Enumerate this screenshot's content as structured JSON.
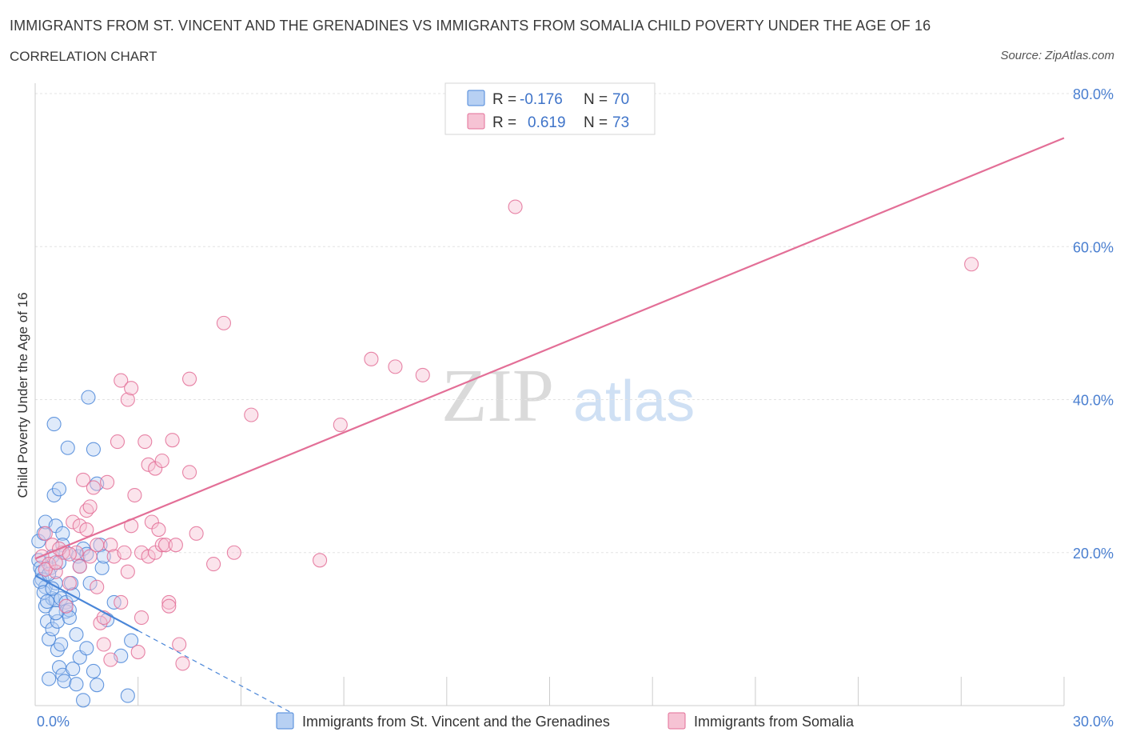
{
  "title": "IMMIGRANTS FROM ST. VINCENT AND THE GRENADINES VS IMMIGRANTS FROM SOMALIA CHILD POVERTY UNDER THE AGE OF 16",
  "subtitle": "CORRELATION CHART",
  "source": "Source: ZipAtlas.com",
  "watermark": {
    "zip": "ZIP",
    "atlas": "atlas"
  },
  "colors": {
    "blue": "#4a86d8",
    "blue_fill": "#b7d0f3",
    "pink": "#e36f97",
    "pink_fill": "#f6c3d4",
    "tick": "#4a7fd0"
  },
  "legend": {
    "rows": [
      {
        "r_label": "R =",
        "r_value": "-0.176",
        "n_label": "N =",
        "n_value": "70"
      },
      {
        "r_label": "R =",
        "r_value": "0.619",
        "n_label": "N =",
        "n_value": "73"
      }
    ]
  },
  "bottom_legend": [
    "Immigrants from St. Vincent and the Grenadines",
    "Immigrants from Somalia"
  ],
  "chart_data": {
    "type": "scatter",
    "title": "IMMIGRANTS FROM ST. VINCENT AND THE GRENADINES VS IMMIGRANTS FROM SOMALIA CHILD POVERTY UNDER THE AGE OF 16",
    "xlabel": "",
    "ylabel": "Child Poverty Under the Age of 16",
    "xlim": [
      0,
      30
    ],
    "ylim": [
      0,
      80
    ],
    "x_tick_labels": [
      "0.0%",
      "30.0%"
    ],
    "y_ticks": [
      20,
      40,
      60,
      80
    ],
    "y_tick_labels": [
      "20.0%",
      "40.0%",
      "60.0%",
      "80.0%"
    ],
    "grid": true,
    "series": [
      {
        "name": "Immigrants from St. Vincent and the Grenadines",
        "color": "#4a86d8",
        "trend": {
          "x0": 0,
          "y0": 17,
          "x1": 3,
          "y1": 9.8,
          "dash_to_x": 7.5
        },
        "points": [
          [
            0.1,
            21.5
          ],
          [
            0.1,
            19
          ],
          [
            0.15,
            18
          ],
          [
            0.2,
            17.5
          ],
          [
            0.2,
            16.5
          ],
          [
            0.25,
            22.5
          ],
          [
            0.3,
            24
          ],
          [
            0.3,
            15.5
          ],
          [
            0.3,
            13
          ],
          [
            0.35,
            11
          ],
          [
            0.4,
            8.7
          ],
          [
            0.4,
            3.5
          ],
          [
            0.45,
            18
          ],
          [
            0.5,
            19.5
          ],
          [
            0.5,
            14
          ],
          [
            0.5,
            10
          ],
          [
            0.55,
            36.8
          ],
          [
            0.55,
            27.5
          ],
          [
            0.6,
            23.5
          ],
          [
            0.6,
            16
          ],
          [
            0.6,
            13.8
          ],
          [
            0.65,
            11
          ],
          [
            0.65,
            7.3
          ],
          [
            0.7,
            28.3
          ],
          [
            0.7,
            5
          ],
          [
            0.75,
            14
          ],
          [
            0.75,
            8
          ],
          [
            0.8,
            22.5
          ],
          [
            0.8,
            21
          ],
          [
            0.8,
            4
          ],
          [
            0.85,
            3.2
          ],
          [
            0.9,
            20
          ],
          [
            0.9,
            13.5
          ],
          [
            0.9,
            12.3
          ],
          [
            0.95,
            33.7
          ],
          [
            1.0,
            12.5
          ],
          [
            1.0,
            11.5
          ],
          [
            1.05,
            16
          ],
          [
            1.1,
            14.5
          ],
          [
            1.1,
            4.8
          ],
          [
            1.2,
            9.3
          ],
          [
            1.2,
            2.8
          ],
          [
            1.25,
            19.5
          ],
          [
            1.3,
            18.2
          ],
          [
            1.3,
            6.3
          ],
          [
            1.4,
            20.5
          ],
          [
            1.4,
            0.7
          ],
          [
            1.5,
            19.8
          ],
          [
            1.5,
            7.5
          ],
          [
            1.55,
            40.3
          ],
          [
            1.6,
            16
          ],
          [
            1.7,
            33.5
          ],
          [
            1.7,
            4.5
          ],
          [
            1.8,
            2.7
          ],
          [
            1.8,
            29
          ],
          [
            1.9,
            21
          ],
          [
            1.95,
            18
          ],
          [
            2.0,
            19.5
          ],
          [
            2.1,
            11.2
          ],
          [
            2.3,
            13.5
          ],
          [
            2.5,
            6.5
          ],
          [
            2.7,
            1.3
          ],
          [
            2.8,
            8.5
          ],
          [
            0.15,
            16.2
          ],
          [
            0.25,
            14.8
          ],
          [
            0.35,
            13.6
          ],
          [
            0.4,
            17.2
          ],
          [
            0.5,
            15.3
          ],
          [
            0.6,
            12.1
          ],
          [
            0.7,
            18.7
          ]
        ]
      },
      {
        "name": "Immigrants from Somalia",
        "color": "#e36f97",
        "trend": {
          "x0": 0,
          "y0": 19.2,
          "x1": 30,
          "y1": 74.2
        },
        "points": [
          [
            0.2,
            19.5
          ],
          [
            0.3,
            22.5
          ],
          [
            0.4,
            18.5
          ],
          [
            0.5,
            21
          ],
          [
            0.6,
            17.5
          ],
          [
            0.8,
            20
          ],
          [
            0.9,
            13
          ],
          [
            1.0,
            16
          ],
          [
            1.1,
            24
          ],
          [
            1.2,
            20
          ],
          [
            1.3,
            23.5
          ],
          [
            1.4,
            29.5
          ],
          [
            1.5,
            25.5
          ],
          [
            1.5,
            23
          ],
          [
            1.6,
            26
          ],
          [
            1.6,
            19.5
          ],
          [
            1.7,
            28.5
          ],
          [
            1.8,
            15.5
          ],
          [
            1.8,
            21
          ],
          [
            1.9,
            10.8
          ],
          [
            2.0,
            11.5
          ],
          [
            2.0,
            8
          ],
          [
            2.1,
            29.2
          ],
          [
            2.2,
            21
          ],
          [
            2.2,
            6
          ],
          [
            2.3,
            19.5
          ],
          [
            2.4,
            34.5
          ],
          [
            2.5,
            13.5
          ],
          [
            2.5,
            42.5
          ],
          [
            2.6,
            20
          ],
          [
            2.7,
            17.5
          ],
          [
            2.7,
            40
          ],
          [
            2.8,
            23.5
          ],
          [
            2.8,
            41.5
          ],
          [
            2.9,
            27.5
          ],
          [
            3.0,
            7
          ],
          [
            3.1,
            11.5
          ],
          [
            3.1,
            20
          ],
          [
            3.2,
            34.5
          ],
          [
            3.3,
            19.5
          ],
          [
            3.3,
            31.5
          ],
          [
            3.4,
            24
          ],
          [
            3.5,
            20
          ],
          [
            3.5,
            31
          ],
          [
            3.6,
            23
          ],
          [
            3.7,
            21
          ],
          [
            3.7,
            32
          ],
          [
            3.8,
            21
          ],
          [
            3.9,
            13.5
          ],
          [
            3.9,
            13
          ],
          [
            4.0,
            34.7
          ],
          [
            4.1,
            21
          ],
          [
            4.2,
            8
          ],
          [
            4.3,
            5.5
          ],
          [
            4.5,
            42.7
          ],
          [
            4.5,
            30.5
          ],
          [
            4.7,
            22.5
          ],
          [
            5.2,
            18.5
          ],
          [
            5.5,
            50
          ],
          [
            5.8,
            20
          ],
          [
            6.3,
            38
          ],
          [
            8.3,
            19
          ],
          [
            8.9,
            36.7
          ],
          [
            9.8,
            45.3
          ],
          [
            10.5,
            44.3
          ],
          [
            11.3,
            43.2
          ],
          [
            14,
            65.2
          ],
          [
            27.3,
            57.7
          ],
          [
            0.7,
            20.5
          ],
          [
            1.0,
            19.8
          ],
          [
            0.3,
            17.8
          ],
          [
            0.6,
            18.7
          ],
          [
            1.3,
            18.2
          ]
        ]
      }
    ]
  }
}
